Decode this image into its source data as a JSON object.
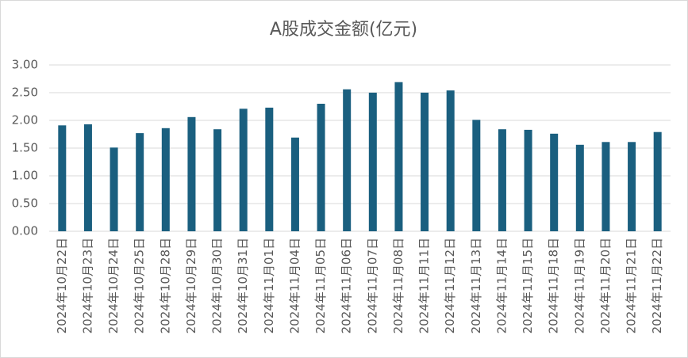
{
  "chart_data": {
    "type": "bar",
    "title": "A股成交金额(亿元)",
    "categories": [
      "2024年10月22日",
      "2024年10月23日",
      "2024年10月24日",
      "2024年10月25日",
      "2024年10月28日",
      "2024年10月29日",
      "2024年10月30日",
      "2024年10月31日",
      "2024年11月01日",
      "2024年11月04日",
      "2024年11月05日",
      "2024年11月06日",
      "2024年11月07日",
      "2024年11月08日",
      "2024年11月11日",
      "2024年11月12日",
      "2024年11月13日",
      "2024年11月14日",
      "2024年11月15日",
      "2024年11月18日",
      "2024年11月19日",
      "2024年11月20日",
      "2024年11月21日",
      "2024年11月22日"
    ],
    "values": [
      1.91,
      1.93,
      1.51,
      1.77,
      1.86,
      2.06,
      1.84,
      2.21,
      2.23,
      1.69,
      2.3,
      2.56,
      2.5,
      2.69,
      2.5,
      2.54,
      2.01,
      1.84,
      1.83,
      1.76,
      1.56,
      1.61,
      1.61,
      1.79
    ],
    "color": "#1a5f7f",
    "ylim": [
      0,
      3
    ],
    "yticks": [
      {
        "value": 0,
        "label": "0.00"
      },
      {
        "value": 0.5,
        "label": "0.50"
      },
      {
        "value": 1,
        "label": "1.00"
      },
      {
        "value": 1.5,
        "label": "1.50"
      },
      {
        "value": 2,
        "label": "2.00"
      },
      {
        "value": 2.5,
        "label": "2.50"
      },
      {
        "value": 3,
        "label": "3.00"
      }
    ],
    "grid": true
  }
}
